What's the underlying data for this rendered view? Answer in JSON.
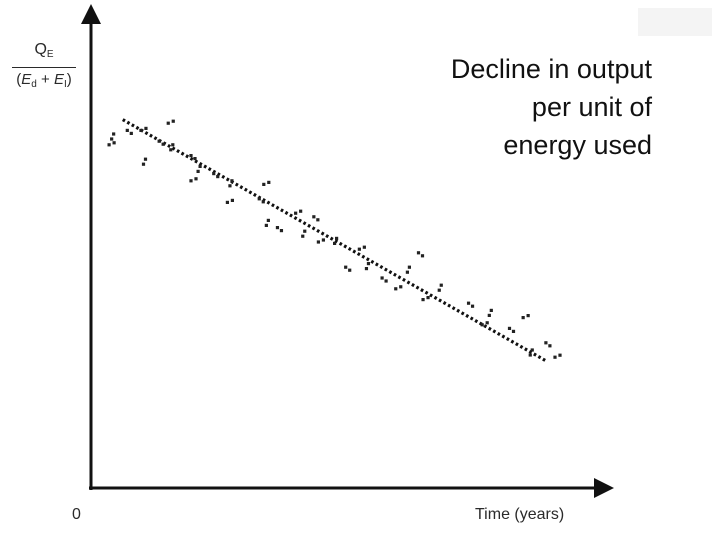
{
  "chart_data": {
    "type": "scatter",
    "title": "",
    "ylabel": {
      "numerator": "Q",
      "numerator_sub": "E",
      "denominator_open": "(",
      "denominator_e1": "E",
      "denominator_e1_sub": "d",
      "denominator_plus": " + ",
      "denominator_e2": "E",
      "denominator_e2_sub": "I",
      "denominator_close": ")"
    },
    "xlabel": "Time (years)",
    "origin_label": "0",
    "annotation": [
      "Decline in output",
      "per unit of",
      "energy used"
    ],
    "xlim": [
      0,
      10
    ],
    "ylim": [
      0,
      10
    ],
    "grid": false,
    "trend_line": {
      "x": [
        0.5,
        9.8
      ],
      "y": [
        8.9,
        2.2
      ],
      "style": "dotted"
    },
    "points": [
      {
        "x": 0.2,
        "y": 8.2
      },
      {
        "x": 0.3,
        "y": 8.5
      },
      {
        "x": 0.6,
        "y": 8.6
      },
      {
        "x": 0.9,
        "y": 8.6
      },
      {
        "x": 1.0,
        "y": 7.8
      },
      {
        "x": 1.3,
        "y": 8.3
      },
      {
        "x": 1.5,
        "y": 8.8
      },
      {
        "x": 1.6,
        "y": 8.2
      },
      {
        "x": 2.0,
        "y": 7.9
      },
      {
        "x": 2.0,
        "y": 7.2
      },
      {
        "x": 2.2,
        "y": 7.6
      },
      {
        "x": 2.5,
        "y": 7.4
      },
      {
        "x": 2.8,
        "y": 6.6
      },
      {
        "x": 2.9,
        "y": 7.2
      },
      {
        "x": 3.5,
        "y": 6.7
      },
      {
        "x": 3.6,
        "y": 7.1
      },
      {
        "x": 3.7,
        "y": 6.1
      },
      {
        "x": 3.9,
        "y": 5.9
      },
      {
        "x": 4.3,
        "y": 6.3
      },
      {
        "x": 4.5,
        "y": 5.8
      },
      {
        "x": 4.7,
        "y": 6.2
      },
      {
        "x": 4.8,
        "y": 5.5
      },
      {
        "x": 5.2,
        "y": 5.6
      },
      {
        "x": 5.4,
        "y": 4.8
      },
      {
        "x": 5.7,
        "y": 5.3
      },
      {
        "x": 5.9,
        "y": 4.9
      },
      {
        "x": 6.2,
        "y": 4.5
      },
      {
        "x": 6.5,
        "y": 4.2
      },
      {
        "x": 6.8,
        "y": 4.8
      },
      {
        "x": 7.0,
        "y": 5.2
      },
      {
        "x": 7.1,
        "y": 3.9
      },
      {
        "x": 7.5,
        "y": 4.3
      },
      {
        "x": 8.1,
        "y": 3.8
      },
      {
        "x": 8.4,
        "y": 3.2
      },
      {
        "x": 8.6,
        "y": 3.6
      },
      {
        "x": 9.0,
        "y": 3.1
      },
      {
        "x": 9.3,
        "y": 3.4
      },
      {
        "x": 9.5,
        "y": 2.5
      },
      {
        "x": 9.8,
        "y": 2.7
      },
      {
        "x": 10.0,
        "y": 2.3
      }
    ]
  }
}
